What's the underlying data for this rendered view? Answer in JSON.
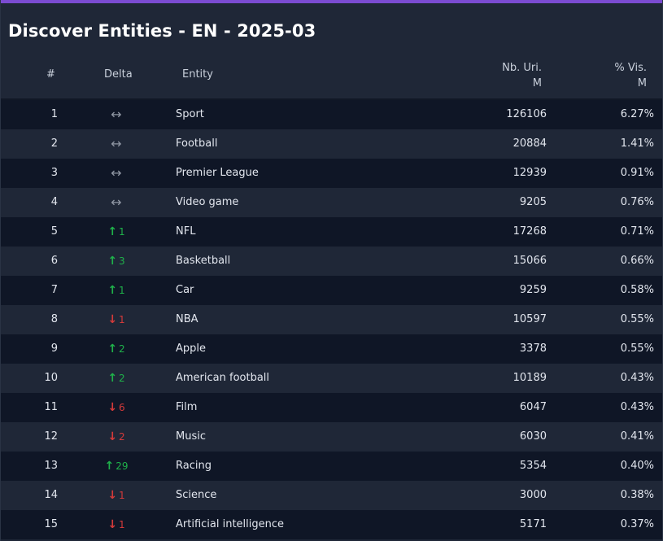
{
  "title": "Discover Entities - EN - 2025-03",
  "colors": {
    "accent": "#7b4bd1",
    "up": "#1fb14a",
    "down": "#d43a3a",
    "same": "#8f96a3"
  },
  "headers": {
    "rank": "#",
    "delta": "Delta",
    "entity": "Entity",
    "uri_line1": "Nb. Uri.",
    "uri_line2": "M",
    "vis_line1": "% Vis.",
    "vis_line2": "M"
  },
  "rows": [
    {
      "rank": "1",
      "dir": "same",
      "delta": "",
      "entity": "Sport",
      "uri": "126106",
      "vis": "6.27%"
    },
    {
      "rank": "2",
      "dir": "same",
      "delta": "",
      "entity": "Football",
      "uri": "20884",
      "vis": "1.41%"
    },
    {
      "rank": "3",
      "dir": "same",
      "delta": "",
      "entity": "Premier League",
      "uri": "12939",
      "vis": "0.91%"
    },
    {
      "rank": "4",
      "dir": "same",
      "delta": "",
      "entity": "Video game",
      "uri": "9205",
      "vis": "0.76%"
    },
    {
      "rank": "5",
      "dir": "up",
      "delta": "1",
      "entity": "NFL",
      "uri": "17268",
      "vis": "0.71%"
    },
    {
      "rank": "6",
      "dir": "up",
      "delta": "3",
      "entity": "Basketball",
      "uri": "15066",
      "vis": "0.66%"
    },
    {
      "rank": "7",
      "dir": "up",
      "delta": "1",
      "entity": "Car",
      "uri": "9259",
      "vis": "0.58%"
    },
    {
      "rank": "8",
      "dir": "down",
      "delta": "1",
      "entity": "NBA",
      "uri": "10597",
      "vis": "0.55%"
    },
    {
      "rank": "9",
      "dir": "up",
      "delta": "2",
      "entity": "Apple",
      "uri": "3378",
      "vis": "0.55%"
    },
    {
      "rank": "10",
      "dir": "up",
      "delta": "2",
      "entity": "American football",
      "uri": "10189",
      "vis": "0.43%"
    },
    {
      "rank": "11",
      "dir": "down",
      "delta": "6",
      "entity": "Film",
      "uri": "6047",
      "vis": "0.43%"
    },
    {
      "rank": "12",
      "dir": "down",
      "delta": "2",
      "entity": "Music",
      "uri": "6030",
      "vis": "0.41%"
    },
    {
      "rank": "13",
      "dir": "up",
      "delta": "29",
      "entity": "Racing",
      "uri": "5354",
      "vis": "0.40%"
    },
    {
      "rank": "14",
      "dir": "down",
      "delta": "1",
      "entity": "Science",
      "uri": "3000",
      "vis": "0.38%"
    },
    {
      "rank": "15",
      "dir": "down",
      "delta": "1",
      "entity": "Artificial intelligence",
      "uri": "5171",
      "vis": "0.37%"
    }
  ]
}
